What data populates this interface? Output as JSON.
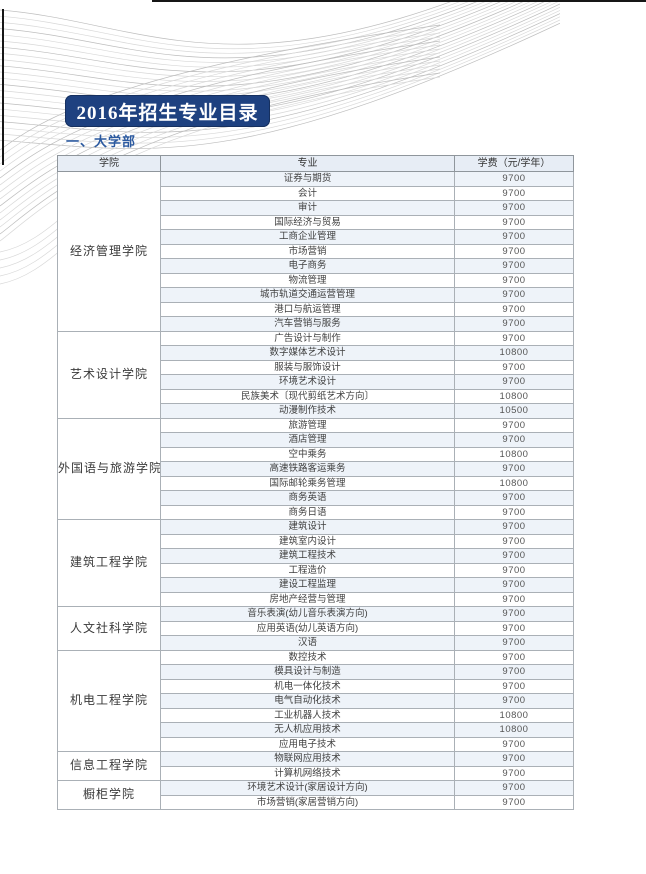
{
  "page": {
    "title_badge": "2016年招生专业目录",
    "section_heading": "一、大学部"
  },
  "colors": {
    "badge_bg": "#1e4180",
    "badge_text": "#ffffff",
    "heading_text": "#2c5aa0",
    "table_header_bg": "#e7edf5",
    "row_stripe_bg": "#eef3f9",
    "border": "#8f969c"
  },
  "table": {
    "headers": [
      "学院",
      "专业",
      "学费（元/学年）"
    ],
    "colleges": [
      {
        "name": "经济管理学院",
        "majors": [
          {
            "name": "证券与期货",
            "fee": "9700"
          },
          {
            "name": "会计",
            "fee": "9700"
          },
          {
            "name": "审计",
            "fee": "9700"
          },
          {
            "name": "国际经济与贸易",
            "fee": "9700"
          },
          {
            "name": "工商企业管理",
            "fee": "9700"
          },
          {
            "name": "市场营销",
            "fee": "9700"
          },
          {
            "name": "电子商务",
            "fee": "9700"
          },
          {
            "name": "物流管理",
            "fee": "9700"
          },
          {
            "name": "城市轨道交通运营管理",
            "fee": "9700"
          },
          {
            "name": "港口与航运管理",
            "fee": "9700"
          },
          {
            "name": "汽车营销与服务",
            "fee": "9700"
          }
        ]
      },
      {
        "name": "艺术设计学院",
        "majors": [
          {
            "name": "广告设计与制作",
            "fee": "9700"
          },
          {
            "name": "数字媒体艺术设计",
            "fee": "10800"
          },
          {
            "name": "服装与服饰设计",
            "fee": "9700"
          },
          {
            "name": "环境艺术设计",
            "fee": "9700"
          },
          {
            "name": "民族美术〔现代剪纸艺术方向〕",
            "fee": "10800"
          },
          {
            "name": "动漫制作技术",
            "fee": "10500"
          }
        ]
      },
      {
        "name": "外国语与旅游学院",
        "majors": [
          {
            "name": "旅游管理",
            "fee": "9700"
          },
          {
            "name": "酒店管理",
            "fee": "9700"
          },
          {
            "name": "空中乘务",
            "fee": "10800"
          },
          {
            "name": "高速铁路客运乘务",
            "fee": "9700"
          },
          {
            "name": "国际邮轮乘务管理",
            "fee": "10800"
          },
          {
            "name": "商务英语",
            "fee": "9700"
          },
          {
            "name": "商务日语",
            "fee": "9700"
          }
        ]
      },
      {
        "name": "建筑工程学院",
        "majors": [
          {
            "name": "建筑设计",
            "fee": "9700"
          },
          {
            "name": "建筑室内设计",
            "fee": "9700"
          },
          {
            "name": "建筑工程技术",
            "fee": "9700"
          },
          {
            "name": "工程造价",
            "fee": "9700"
          },
          {
            "name": "建设工程监理",
            "fee": "9700"
          },
          {
            "name": "房地产经营与管理",
            "fee": "9700"
          }
        ]
      },
      {
        "name": "人文社科学院",
        "majors": [
          {
            "name": "音乐表演(幼儿音乐表演方向)",
            "fee": "9700"
          },
          {
            "name": "应用英语(幼儿英语方向)",
            "fee": "9700"
          },
          {
            "name": "汉语",
            "fee": "9700"
          }
        ]
      },
      {
        "name": "机电工程学院",
        "majors": [
          {
            "name": "数控技术",
            "fee": "9700"
          },
          {
            "name": "模具设计与制造",
            "fee": "9700"
          },
          {
            "name": "机电一体化技术",
            "fee": "9700"
          },
          {
            "name": "电气自动化技术",
            "fee": "9700"
          },
          {
            "name": "工业机器人技术",
            "fee": "10800"
          },
          {
            "name": "无人机应用技术",
            "fee": "10800"
          },
          {
            "name": "应用电子技术",
            "fee": "9700"
          }
        ]
      },
      {
        "name": "信息工程学院",
        "majors": [
          {
            "name": "物联网应用技术",
            "fee": "9700"
          },
          {
            "name": "计算机网络技术",
            "fee": "9700"
          }
        ]
      },
      {
        "name": "橱柜学院",
        "majors": [
          {
            "name": "环境艺术设计(家居设计方向)",
            "fee": "9700"
          },
          {
            "name": "市场营销(家居营销方向)",
            "fee": "9700"
          }
        ]
      }
    ]
  }
}
